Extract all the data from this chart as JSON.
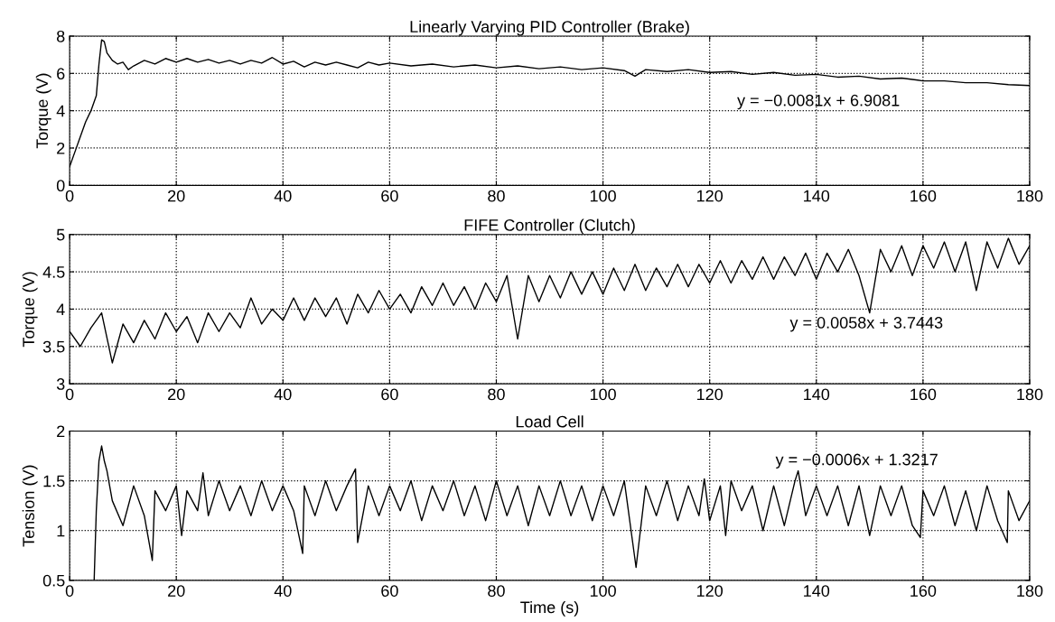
{
  "chart_data": [
    {
      "type": "line",
      "title": "Linearly Varying PID Controller (Brake)",
      "ylabel": "Torque (V)",
      "annotations": [
        "y = −0.0081x + 6.9081"
      ],
      "xlim": [
        0,
        180
      ],
      "xticks": [
        0,
        20,
        40,
        60,
        80,
        100,
        120,
        140,
        160,
        180
      ],
      "ylim": [
        0,
        8
      ],
      "yticks": [
        0,
        2,
        4,
        6,
        8
      ],
      "grid": true,
      "line_style": "solid",
      "marker": "none",
      "series": [
        {
          "color": "#000000",
          "x": [
            0,
            1,
            2,
            3,
            4,
            5,
            5.5,
            6,
            6.5,
            7,
            8,
            9,
            10,
            11,
            12,
            14,
            16,
            18,
            20,
            22,
            24,
            26,
            28,
            30,
            32,
            34,
            36,
            38,
            40,
            42,
            44,
            46,
            48,
            50,
            52,
            54,
            56,
            58,
            60,
            64,
            68,
            72,
            76,
            80,
            84,
            88,
            92,
            96,
            100,
            104,
            106,
            108,
            112,
            116,
            120,
            124,
            128,
            132,
            136,
            140,
            144,
            148,
            152,
            156,
            160,
            164,
            168,
            172,
            176,
            180
          ],
          "values": [
            1.0,
            1.8,
            2.6,
            3.4,
            4.0,
            4.8,
            6.5,
            7.8,
            7.7,
            7.1,
            6.7,
            6.5,
            6.6,
            6.2,
            6.4,
            6.7,
            6.5,
            6.8,
            6.6,
            6.8,
            6.6,
            6.75,
            6.55,
            6.7,
            6.5,
            6.7,
            6.55,
            6.85,
            6.5,
            6.65,
            6.35,
            6.6,
            6.45,
            6.6,
            6.45,
            6.3,
            6.6,
            6.45,
            6.55,
            6.4,
            6.5,
            6.35,
            6.45,
            6.3,
            6.4,
            6.25,
            6.35,
            6.2,
            6.3,
            6.15,
            5.85,
            6.2,
            6.1,
            6.2,
            6.05,
            6.1,
            5.95,
            6.05,
            5.9,
            5.95,
            5.8,
            5.85,
            5.7,
            5.75,
            5.6,
            5.6,
            5.5,
            5.5,
            5.4,
            5.35
          ]
        }
      ]
    },
    {
      "type": "line",
      "title": "FIFE Controller (Clutch)",
      "ylabel": "Torque (V)",
      "annotations": [
        "y = 0.0058x + 3.7443"
      ],
      "xlim": [
        0,
        180
      ],
      "xticks": [
        0,
        20,
        40,
        60,
        80,
        100,
        120,
        140,
        160,
        180
      ],
      "ylim": [
        3,
        5
      ],
      "yticks": [
        3,
        3.5,
        4,
        4.5,
        5
      ],
      "grid": true,
      "line_style": "solid",
      "marker": "none",
      "series": [
        {
          "color": "#000000",
          "x": [
            0,
            2,
            4,
            6,
            8,
            10,
            12,
            14,
            16,
            18,
            20,
            22,
            24,
            26,
            28,
            30,
            32,
            34,
            36,
            38,
            40,
            42,
            44,
            46,
            48,
            50,
            52,
            54,
            56,
            58,
            60,
            62,
            64,
            66,
            68,
            70,
            72,
            74,
            76,
            78,
            80,
            82,
            84,
            86,
            88,
            90,
            92,
            94,
            96,
            98,
            100,
            102,
            104,
            106,
            108,
            110,
            112,
            114,
            116,
            118,
            120,
            122,
            124,
            126,
            128,
            130,
            132,
            134,
            136,
            138,
            140,
            142,
            144,
            146,
            148,
            150,
            152,
            154,
            156,
            158,
            160,
            162,
            164,
            166,
            168,
            170,
            172,
            174,
            176,
            178,
            180
          ],
          "values": [
            3.7,
            3.5,
            3.75,
            3.95,
            3.28,
            3.8,
            3.55,
            3.85,
            3.6,
            3.95,
            3.7,
            3.9,
            3.55,
            3.95,
            3.7,
            3.95,
            3.75,
            4.15,
            3.8,
            4.0,
            3.85,
            4.15,
            3.85,
            4.15,
            3.9,
            4.15,
            3.8,
            4.2,
            3.95,
            4.25,
            4.0,
            4.2,
            3.95,
            4.3,
            4.05,
            4.35,
            4.05,
            4.3,
            4.0,
            4.35,
            4.1,
            4.45,
            3.6,
            4.45,
            4.1,
            4.45,
            4.15,
            4.5,
            4.2,
            4.5,
            4.2,
            4.55,
            4.25,
            4.6,
            4.25,
            4.55,
            4.3,
            4.6,
            4.3,
            4.6,
            4.35,
            4.65,
            4.35,
            4.65,
            4.4,
            4.7,
            4.4,
            4.7,
            4.45,
            4.75,
            4.4,
            4.75,
            4.5,
            4.8,
            4.45,
            3.95,
            4.8,
            4.5,
            4.85,
            4.45,
            4.85,
            4.55,
            4.9,
            4.5,
            4.9,
            4.25,
            4.9,
            4.55,
            4.95,
            4.6,
            4.85
          ]
        }
      ]
    },
    {
      "type": "line",
      "title": "Load Cell",
      "xlabel": "Time (s)",
      "ylabel": "Tension (V)",
      "annotations": [
        "y = −0.0006x + 1.3217"
      ],
      "xlim": [
        0,
        180
      ],
      "xticks": [
        0,
        20,
        40,
        60,
        80,
        100,
        120,
        140,
        160,
        180
      ],
      "ylim": [
        0.5,
        2
      ],
      "yticks": [
        0.5,
        1,
        1.5,
        2
      ],
      "grid": true,
      "line_style": "solid",
      "marker": "none",
      "series": [
        {
          "color": "#000000",
          "x": [
            4.6,
            5,
            5.5,
            6,
            6.5,
            7,
            7.5,
            8,
            10,
            12,
            14,
            15.5,
            16,
            18,
            20,
            21,
            22,
            24,
            25,
            26,
            28,
            30,
            32,
            34,
            36,
            38,
            40,
            42,
            43.7,
            44,
            46,
            48,
            50,
            52,
            53.6,
            54,
            56,
            58,
            60,
            62,
            64,
            66,
            68,
            70,
            72,
            74,
            76,
            78,
            80,
            82,
            84,
            86,
            88,
            90,
            92,
            94,
            96,
            98,
            100,
            102,
            104,
            106.2,
            108,
            110,
            112,
            114,
            116,
            118,
            119,
            120,
            122,
            123,
            124,
            126,
            128,
            130,
            132,
            134,
            136,
            136.6,
            138,
            140,
            142,
            144,
            146,
            148,
            150,
            152,
            154,
            156,
            158,
            159.5,
            160,
            162,
            164,
            166,
            168,
            170,
            172,
            174,
            175.8,
            176,
            178,
            180
          ],
          "values": [
            0.5,
            1.2,
            1.7,
            1.85,
            1.7,
            1.6,
            1.45,
            1.3,
            1.05,
            1.45,
            1.15,
            0.7,
            1.4,
            1.2,
            1.45,
            0.95,
            1.4,
            1.2,
            1.58,
            1.15,
            1.5,
            1.2,
            1.45,
            1.15,
            1.5,
            1.2,
            1.45,
            1.2,
            0.77,
            1.45,
            1.15,
            1.5,
            1.2,
            1.45,
            1.62,
            0.88,
            1.45,
            1.15,
            1.45,
            1.2,
            1.5,
            1.1,
            1.45,
            1.2,
            1.5,
            1.15,
            1.45,
            1.1,
            1.5,
            1.15,
            1.45,
            1.05,
            1.45,
            1.15,
            1.5,
            1.15,
            1.45,
            1.1,
            1.45,
            1.15,
            1.5,
            0.63,
            1.45,
            1.15,
            1.5,
            1.1,
            1.45,
            1.15,
            1.52,
            1.1,
            1.45,
            0.95,
            1.5,
            1.2,
            1.45,
            1.0,
            1.45,
            1.05,
            1.5,
            1.6,
            1.15,
            1.45,
            1.15,
            1.45,
            1.05,
            1.45,
            0.95,
            1.45,
            1.15,
            1.45,
            1.05,
            0.93,
            1.4,
            1.15,
            1.45,
            1.05,
            1.4,
            1.0,
            1.45,
            1.1,
            0.88,
            1.4,
            1.1,
            1.3
          ]
        }
      ]
    }
  ]
}
